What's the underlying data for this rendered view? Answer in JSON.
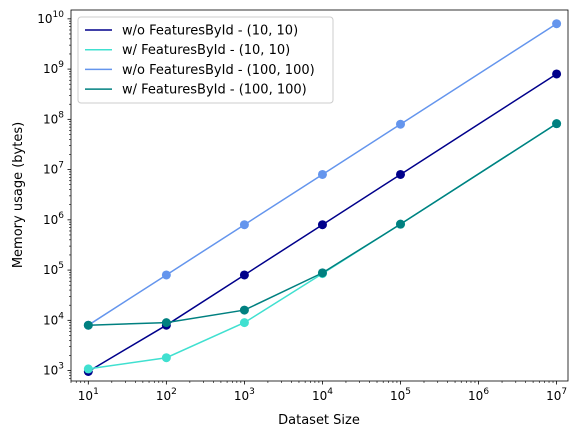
{
  "chart_data": {
    "type": "line",
    "xlabel": "Dataset Size",
    "ylabel": "Memory usage (bytes)",
    "x_scale": "log",
    "y_scale": "log",
    "xlim": [
      6,
      14000000
    ],
    "ylim": [
      620,
      15000000000
    ],
    "x_ticks": [
      10,
      100,
      1000,
      10000,
      100000,
      1000000,
      10000000
    ],
    "x_tick_exponents": [
      "1",
      "2",
      "3",
      "4",
      "5",
      "6",
      "7"
    ],
    "y_ticks": [
      1000,
      10000,
      100000,
      1000000,
      10000000,
      100000000,
      1000000000,
      10000000000
    ],
    "y_tick_exponents": [
      "3",
      "4",
      "5",
      "6",
      "7",
      "8",
      "9",
      "10"
    ],
    "tick_base": "10",
    "grid": false,
    "legend_position": "top-left",
    "series": [
      {
        "name": "w/o FeaturesById - (10, 10)",
        "color": "#00008b",
        "x": [
          10,
          100,
          1000,
          10000,
          100000,
          10000000
        ],
        "y": [
          960,
          8000,
          80000,
          800000,
          8000000,
          800000000
        ]
      },
      {
        "name": "w/ FeaturesById - (10, 10)",
        "color": "#40e0d0",
        "x": [
          10,
          100,
          1000,
          10000,
          100000,
          10000000
        ],
        "y": [
          1080,
          1800,
          9000,
          85000,
          820000,
          82000000
        ]
      },
      {
        "name": "w/o FeaturesById - (100, 100)",
        "color": "#6495ed",
        "x": [
          10,
          100,
          1000,
          10000,
          100000,
          10000000
        ],
        "y": [
          8000,
          80000,
          800000,
          8000000,
          80000000,
          8000000000
        ]
      },
      {
        "name": "w/ FeaturesById - (100, 100)",
        "color": "#008080",
        "x": [
          10,
          100,
          1000,
          10000,
          100000,
          10000000
        ],
        "y": [
          8000,
          9000,
          16000,
          88000,
          820000,
          82000000
        ]
      }
    ]
  }
}
